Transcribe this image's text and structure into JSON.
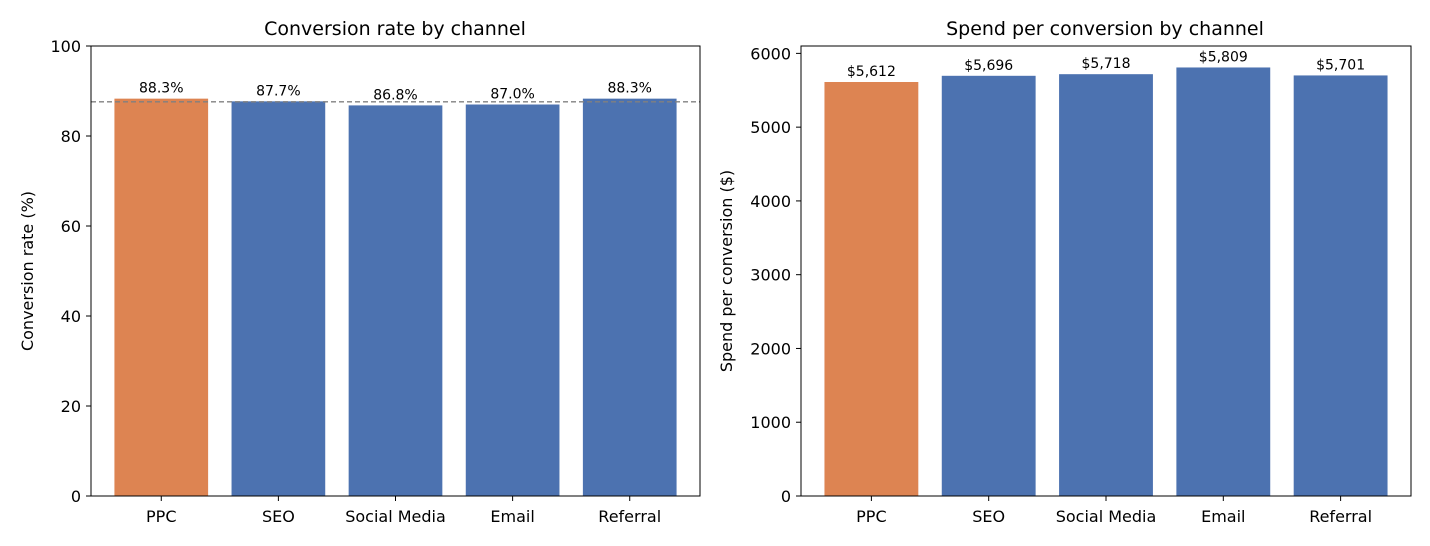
{
  "chart_data": [
    {
      "type": "bar",
      "title": "Conversion rate by channel",
      "xlabel": "",
      "ylabel": "Conversion rate (%)",
      "categories": [
        "PPC",
        "SEO",
        "Social Media",
        "Email",
        "Referral"
      ],
      "values": [
        88.3,
        87.7,
        86.8,
        87.0,
        88.3
      ],
      "data_labels": [
        "88.3%",
        "87.7%",
        "86.8%",
        "87.0%",
        "88.3%"
      ],
      "highlight_index": 0,
      "reference_line": 87.6,
      "ylim": [
        0,
        100
      ],
      "yticks": [
        0,
        20,
        40,
        60,
        80,
        100
      ],
      "grid": false
    },
    {
      "type": "bar",
      "title": "Spend per conversion by channel",
      "xlabel": "",
      "ylabel": "Spend per conversion ($)",
      "categories": [
        "PPC",
        "SEO",
        "Social Media",
        "Email",
        "Referral"
      ],
      "values": [
        5612,
        5696,
        5718,
        5809,
        5701
      ],
      "data_labels": [
        "$5,612",
        "$5,696",
        "$5,718",
        "$5,809",
        "$5,701"
      ],
      "highlight_index": 0,
      "ylim": [
        0,
        6100
      ],
      "yticks": [
        0,
        1000,
        2000,
        3000,
        4000,
        5000,
        6000
      ],
      "grid": false
    }
  ],
  "colors": {
    "highlight": "#dd8452",
    "default": "#4c72b0",
    "reference_line": "#808080"
  }
}
